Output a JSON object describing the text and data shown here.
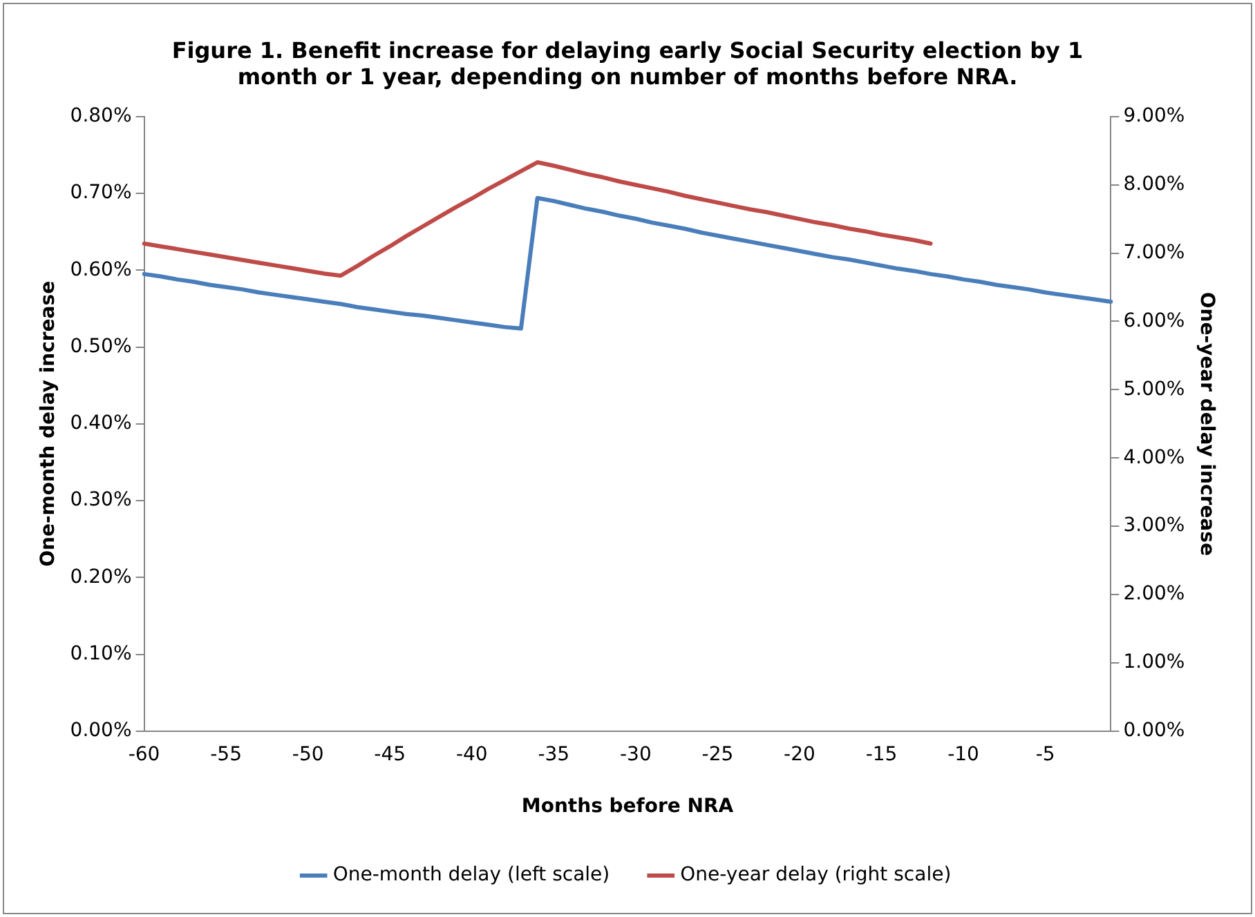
{
  "chart_data": {
    "type": "line",
    "title": "Figure 1. Benefit increase for delaying early Social Security election by 1 month or 1 year, depending on number of months before NRA.",
    "xlabel": "Months before NRA",
    "ylabel": "One-month delay increase",
    "y2label": "One-year delay increase",
    "categories": [
      "-60",
      null,
      null,
      null,
      null,
      "-55",
      null,
      null,
      null,
      null,
      "-50",
      null,
      null,
      null,
      null,
      "-45",
      null,
      null,
      null,
      null,
      "-40",
      null,
      null,
      null,
      null,
      "-35",
      null,
      null,
      null,
      null,
      "-30",
      null,
      null,
      null,
      null,
      "-25",
      null,
      null,
      null,
      null,
      "-20",
      null,
      null,
      null,
      null,
      "-15",
      null,
      null,
      null,
      null,
      "-10",
      null,
      null,
      null,
      null,
      "-5",
      null,
      null,
      null,
      null
    ],
    "series": [
      {
        "name": "One-month delay (left scale)",
        "color": "#4a7ebb",
        "values": [
          0.595,
          0.592,
          0.588,
          0.585,
          0.581,
          0.578,
          0.575,
          0.571,
          0.568,
          0.565,
          0.562,
          0.559,
          0.556,
          0.552,
          0.549,
          0.546,
          0.543,
          0.541,
          0.538,
          0.535,
          0.532,
          0.529,
          0.526,
          0.524,
          0.694,
          0.69,
          0.685,
          0.68,
          0.676,
          0.671,
          0.667,
          0.662,
          0.658,
          0.654,
          0.649,
          0.645,
          0.641,
          0.637,
          0.633,
          0.629,
          0.625,
          0.621,
          0.617,
          0.614,
          0.61,
          0.606,
          0.602,
          0.599,
          0.595,
          0.592,
          0.588,
          0.585,
          0.581,
          0.578,
          0.575,
          0.571,
          0.568,
          0.565,
          0.562,
          0.559
        ]
      },
      {
        "name": "One-year delay (right scale)",
        "color": "#be4b48",
        "axis": "y2",
        "values": [
          7.14,
          7.1,
          7.06,
          7.02,
          6.98,
          6.94,
          6.9,
          6.86,
          6.82,
          6.78,
          6.74,
          6.7,
          6.67,
          6.81,
          6.96,
          7.1,
          7.25,
          7.39,
          7.53,
          7.67,
          7.8,
          7.94,
          8.07,
          8.2,
          8.33,
          8.28,
          8.22,
          8.16,
          8.11,
          8.05,
          8.0,
          7.95,
          7.9,
          7.84,
          7.79,
          7.74,
          7.69,
          7.64,
          7.6,
          7.55,
          7.5,
          7.45,
          7.41,
          7.36,
          7.32,
          7.27,
          7.23,
          7.19,
          7.14,
          null,
          null,
          null,
          null,
          null,
          null,
          null,
          null,
          null,
          null,
          null
        ]
      }
    ],
    "ylim": [
      0,
      0.8
    ],
    "yticks": [
      {
        "value": 0,
        "label": "0.00%"
      },
      {
        "value": 0.1,
        "label": "0.10%"
      },
      {
        "value": 0.2,
        "label": "0.20%"
      },
      {
        "value": 0.3,
        "label": "0.30%"
      },
      {
        "value": 0.4,
        "label": "0.40%"
      },
      {
        "value": 0.5,
        "label": "0.50%"
      },
      {
        "value": 0.6,
        "label": "0.60%"
      },
      {
        "value": 0.7,
        "label": "0.70%"
      },
      {
        "value": 0.8,
        "label": "0.80%"
      }
    ],
    "y2lim": [
      0,
      9
    ],
    "y2ticks": [
      {
        "value": 0,
        "label": "0.00%"
      },
      {
        "value": 1,
        "label": "1.00%"
      },
      {
        "value": 2,
        "label": "2.00%"
      },
      {
        "value": 3,
        "label": "3.00%"
      },
      {
        "value": 4,
        "label": "4.00%"
      },
      {
        "value": 5,
        "label": "5.00%"
      },
      {
        "value": 6,
        "label": "6.00%"
      },
      {
        "value": 7,
        "label": "7.00%"
      },
      {
        "value": 8,
        "label": "8.00%"
      },
      {
        "value": 9,
        "label": "9.00%"
      }
    ],
    "grid": false,
    "legend": "bottom",
    "marker": "none",
    "line_style": "solid"
  }
}
